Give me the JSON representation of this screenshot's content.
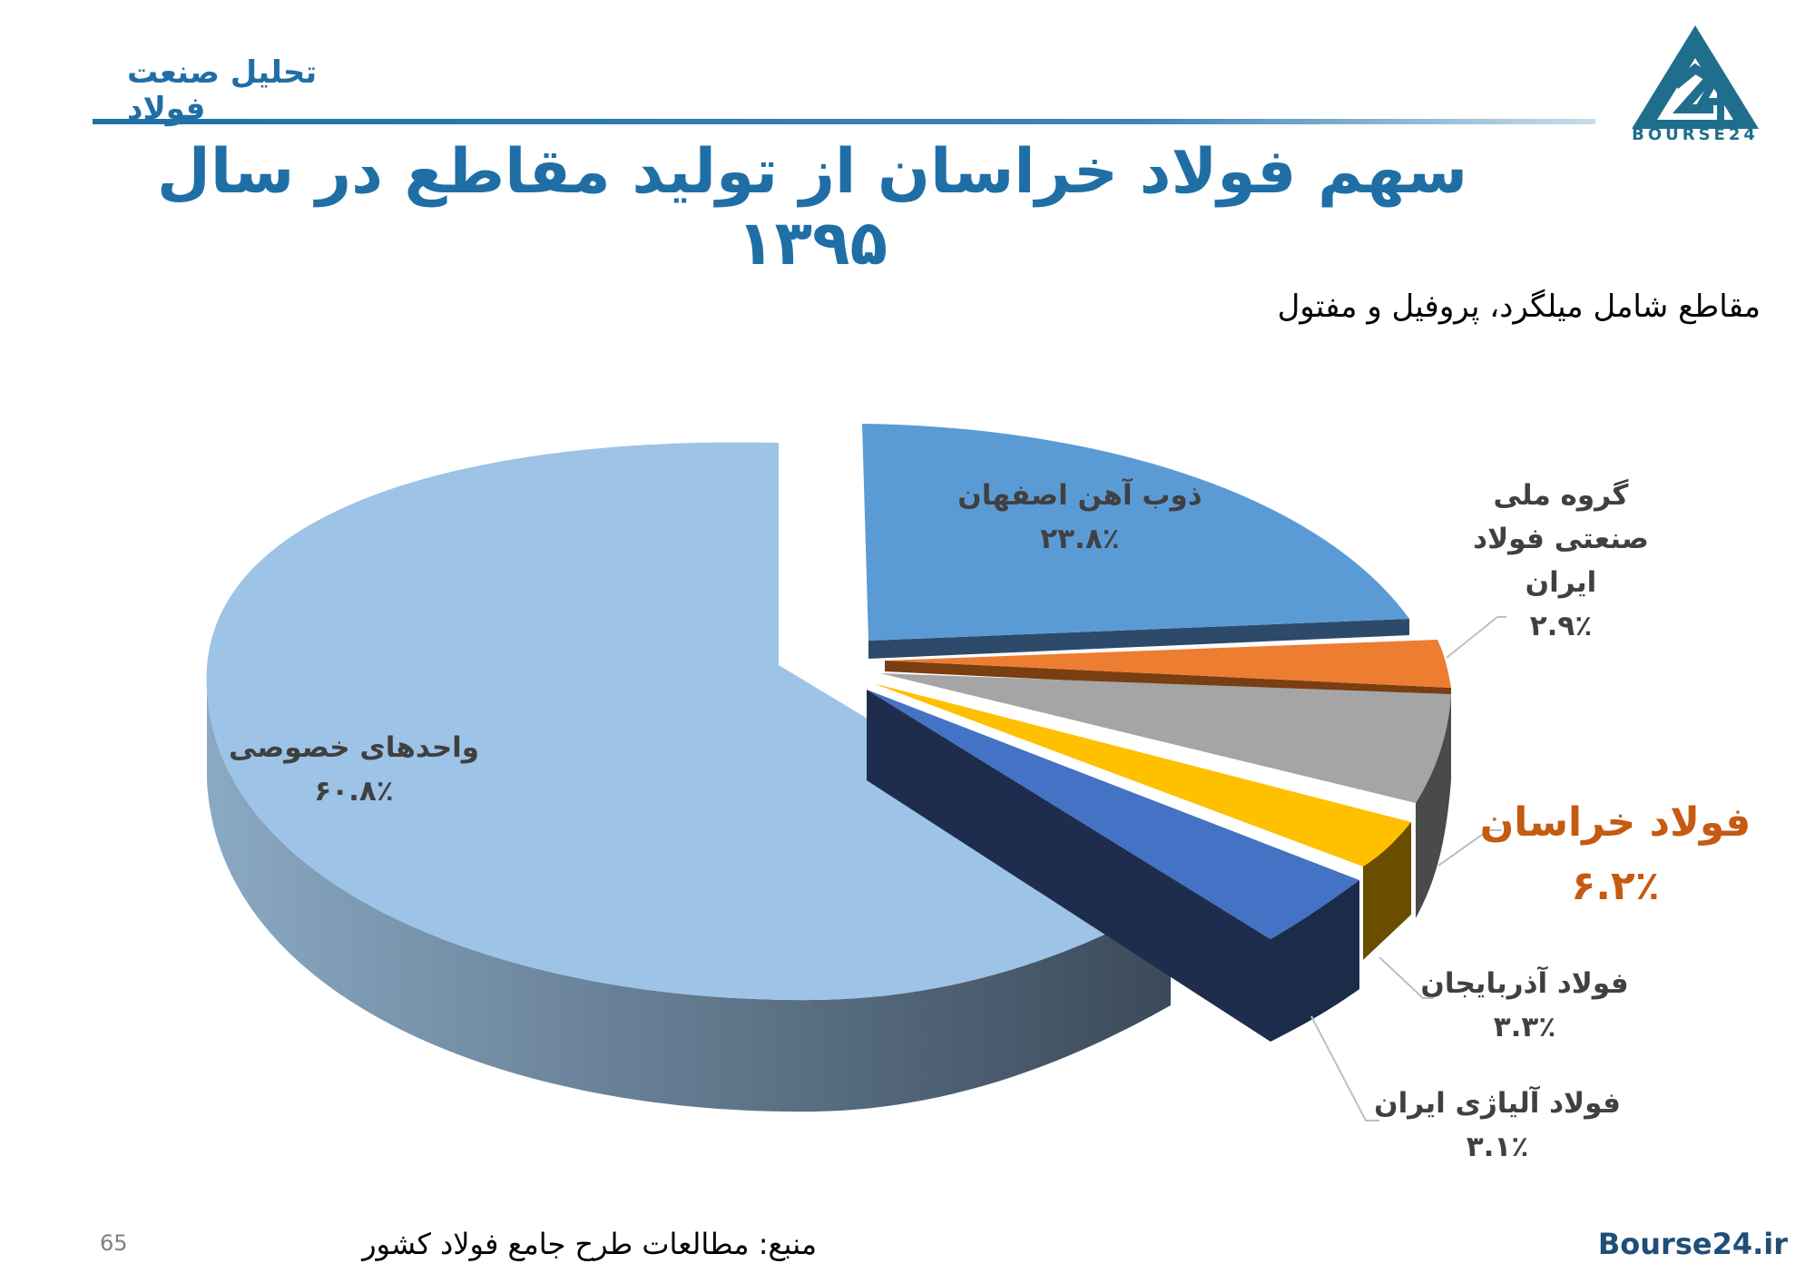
{
  "header": {
    "tag": "تحلیل صنعت فولاد"
  },
  "logo": {
    "text": "BOURSE24"
  },
  "title": "سهم فولاد خراسان از تولید مقاطع در سال ۱۳۹۵",
  "subtitle": "مقاطع شامل میلگرد، پروفیل و مفتول",
  "chart_data": {
    "type": "pie",
    "title": "سهم فولاد خراسان از تولید مقاطع در سال ۱۳۹۵",
    "style": "3d-exploded",
    "slices": [
      {
        "name": "ذوب آهن اصفهان",
        "value": 23.8,
        "label": "۲۳.۸٪",
        "color": "#5b9bd5"
      },
      {
        "name": "گروه ملی صنعتی فولاد ایران",
        "value": 2.9,
        "label": "۲.۹٪",
        "color": "#ed7d31"
      },
      {
        "name": "فولاد خراسان",
        "value": 6.2,
        "label": "۶.۲٪",
        "color": "#a5a5a5"
      },
      {
        "name": "فولاد آذربایجان",
        "value": 3.3,
        "label": "۳.۳٪",
        "color": "#ffc000"
      },
      {
        "name": "فولاد آلیاژی ایران",
        "value": 3.1,
        "label": "۳.۱٪",
        "color": "#4472c4"
      },
      {
        "name": "واحدهای خصوصی",
        "value": 60.8,
        "label": "۶۰.۸٪",
        "color": "#9dc3e6"
      }
    ],
    "highlight": "فولاد خراسان",
    "highlight_color": "#c55a11"
  },
  "source": "منبع: مطالعات طرح جامع فولاد کشور",
  "page_number": "65",
  "site": "Bourse24.ir"
}
